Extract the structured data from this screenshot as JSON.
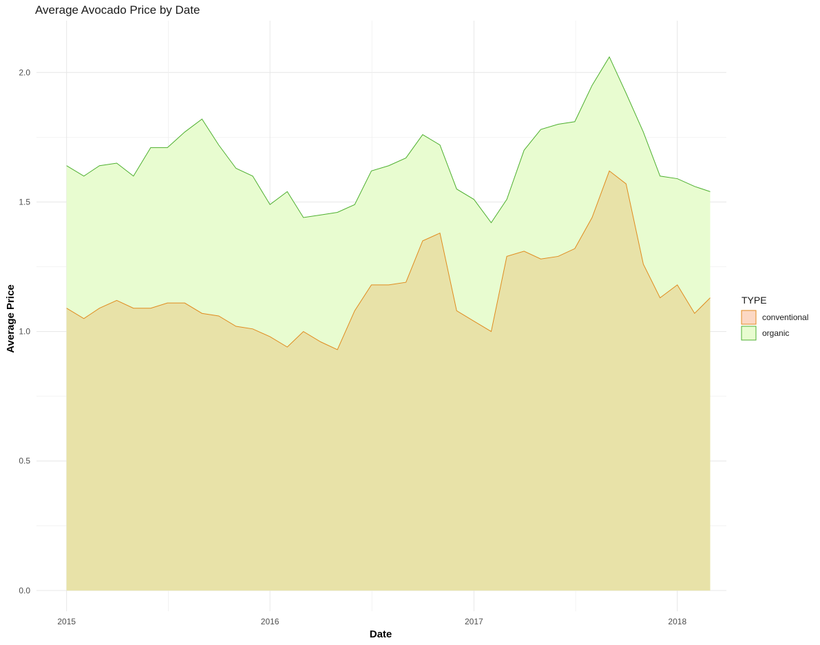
{
  "chart_data": {
    "type": "area",
    "title": "Average Avocado Price by Date",
    "xlabel": "Date",
    "ylabel": "Average Price",
    "xlim": [
      "2014-11-08",
      "2018-03-30"
    ],
    "ylim": [
      -0.08,
      2.2
    ],
    "x_ticks": [
      "2015-01-01",
      "2016-01-01",
      "2017-01-01",
      "2018-01-01"
    ],
    "x_tick_labels": [
      "2015",
      "2016",
      "2017",
      "2018"
    ],
    "y_ticks": [
      0.0,
      0.5,
      1.0,
      1.5,
      2.0
    ],
    "y_tick_labels": [
      "0.0",
      "0.5",
      "1.0",
      "1.5",
      "2.0"
    ],
    "grid": true,
    "legend": {
      "title": "TYPE",
      "position": "right",
      "entries": [
        "conventional",
        "organic"
      ]
    },
    "x": [
      "2015-01",
      "2015-02",
      "2015-03",
      "2015-04",
      "2015-05",
      "2015-06",
      "2015-07",
      "2015-08",
      "2015-09",
      "2015-10",
      "2015-11",
      "2015-12",
      "2016-01",
      "2016-02",
      "2016-03",
      "2016-04",
      "2016-05",
      "2016-06",
      "2016-07",
      "2016-08",
      "2016-09",
      "2016-10",
      "2016-11",
      "2016-12",
      "2017-01",
      "2017-02",
      "2017-03",
      "2017-04",
      "2017-05",
      "2017-06",
      "2017-07",
      "2017-08",
      "2017-09",
      "2017-10",
      "2017-11",
      "2017-12",
      "2018-01",
      "2018-02",
      "2018-03"
    ],
    "series": [
      {
        "name": "organic",
        "color": "#4daf2f",
        "fill": "#e8fcd0",
        "values": [
          1.64,
          1.6,
          1.64,
          1.65,
          1.6,
          1.71,
          1.71,
          1.77,
          1.82,
          1.72,
          1.63,
          1.6,
          1.49,
          1.54,
          1.44,
          1.45,
          1.46,
          1.49,
          1.62,
          1.64,
          1.67,
          1.76,
          1.72,
          1.55,
          1.51,
          1.42,
          1.51,
          1.7,
          1.78,
          1.8,
          1.81,
          1.95,
          2.06,
          1.92,
          1.77,
          1.6,
          1.59,
          1.56,
          1.54
        ]
      },
      {
        "name": "conventional",
        "color": "#e08a1e",
        "fill": "#e8e2a8",
        "values": [
          1.09,
          1.05,
          1.09,
          1.12,
          1.09,
          1.09,
          1.11,
          1.11,
          1.07,
          1.06,
          1.02,
          1.01,
          0.98,
          0.94,
          1.0,
          0.96,
          0.93,
          1.08,
          1.18,
          1.18,
          1.19,
          1.35,
          1.38,
          1.08,
          1.04,
          1.0,
          1.29,
          1.31,
          1.28,
          1.29,
          1.32,
          1.44,
          1.62,
          1.57,
          1.26,
          1.13,
          1.18,
          1.07,
          1.13
        ]
      }
    ]
  }
}
